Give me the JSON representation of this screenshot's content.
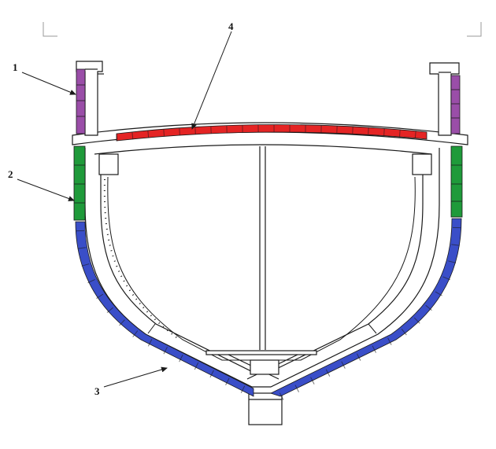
{
  "diagram": {
    "callouts": [
      {
        "id": "1",
        "label": "1"
      },
      {
        "id": "2",
        "label": "2"
      },
      {
        "id": "3",
        "label": "3"
      },
      {
        "id": "4",
        "label": "4"
      }
    ],
    "colors": {
      "zone_1": "#9a4ea8",
      "zone_2": "#1f9a3a",
      "zone_3": "#3a4ec8",
      "zone_4": "#e42424",
      "outline": "#1a1a1a"
    }
  }
}
